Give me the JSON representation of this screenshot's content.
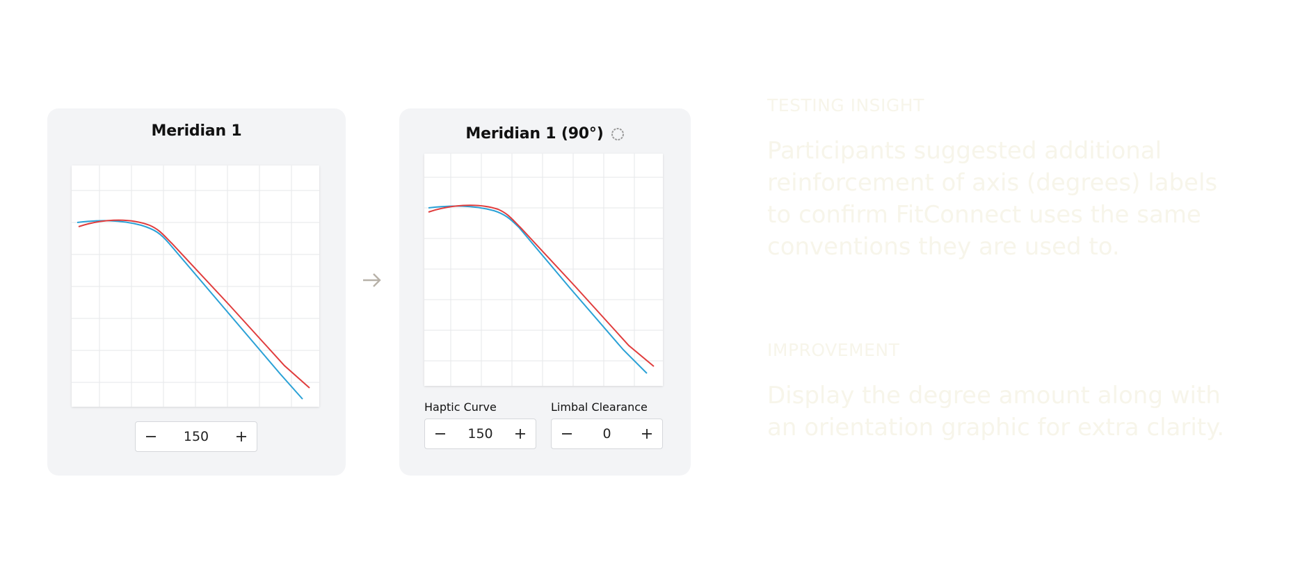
{
  "panel_before": {
    "title": "Meridian 1",
    "stepper_value": "150"
  },
  "panel_after": {
    "title": "Meridian 1 (90°)",
    "haptic_label": "Haptic Curve",
    "haptic_value": "150",
    "limbal_label": "Limbal Clearance",
    "limbal_value": "0"
  },
  "icons": {
    "minus": "minus-icon",
    "plus": "plus-icon",
    "arrow": "arrow-right-icon",
    "rotation": "rotation-indicator-icon"
  },
  "colors": {
    "curve_red": "#e03c3c",
    "curve_blue": "#2aa1d6",
    "card_bg": "#f3f4f6",
    "insight_text": "#f7f5ea"
  },
  "insights": {
    "testing_label": "TESTING INSIGHT",
    "testing_body": "Participants suggested additional reinforcement of axis (degrees) labels to confirm FitConnect uses the same conventions they are used to.",
    "improvement_label": "IMPROVEMENT",
    "improvement_body": "Display the degree amount along with an orientation graphic for extra clarity."
  }
}
